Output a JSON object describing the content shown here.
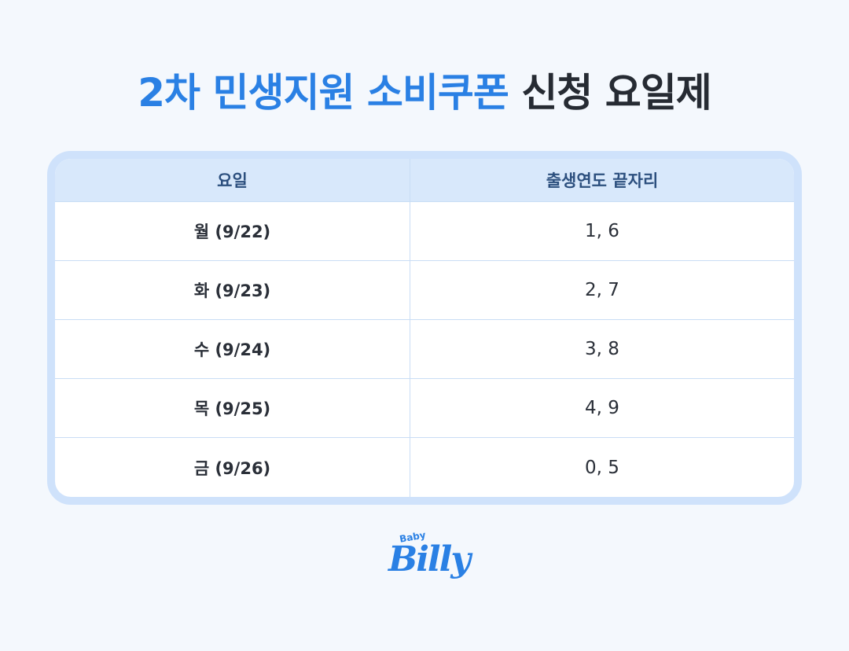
{
  "header": {
    "title_highlight": "2차 민생지원 소비쿠폰",
    "title_rest": "신청 요일제"
  },
  "table": {
    "columns": [
      "요일",
      "출생연도 끝자리"
    ],
    "rows": [
      [
        "월 (9/22)",
        "1, 6"
      ],
      [
        "화 (9/23)",
        "2, 7"
      ],
      [
        "수 (9/24)",
        "3, 8"
      ],
      [
        "목 (9/25)",
        "4, 9"
      ],
      [
        "금 (9/26)",
        "0, 5"
      ]
    ]
  },
  "logo": {
    "small": "Baby",
    "main": "Billy"
  }
}
